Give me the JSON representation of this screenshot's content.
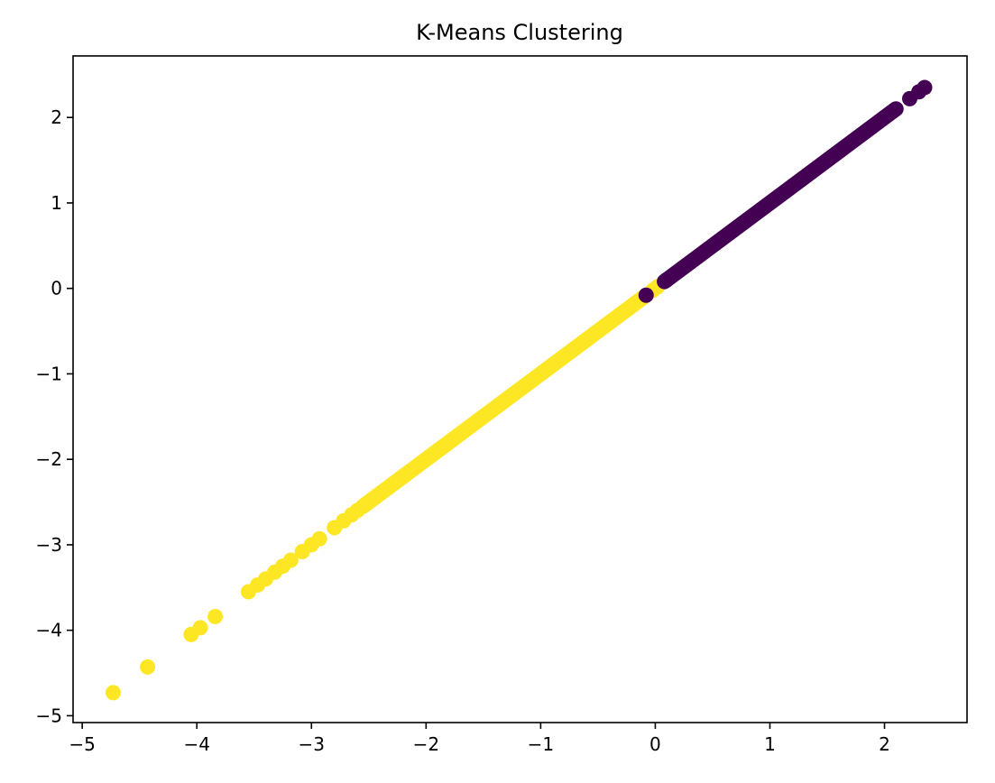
{
  "chart_data": {
    "type": "scatter",
    "title": "K-Means Clustering",
    "xlabel": "",
    "ylabel": "",
    "xlim": [
      -5.08,
      2.72
    ],
    "ylim": [
      -5.08,
      2.72
    ],
    "grid": false,
    "x_ticks": [
      -5,
      -4,
      -3,
      -2,
      -1,
      0,
      1,
      2
    ],
    "y_ticks": [
      -5,
      -4,
      -3,
      -2,
      -1,
      0,
      1,
      2
    ],
    "x_tick_labels": [
      "−5",
      "−4",
      "−3",
      "−2",
      "−1",
      "0",
      "1",
      "2"
    ],
    "y_tick_labels": [
      "−5",
      "−4",
      "−3",
      "−2",
      "−1",
      "0",
      "1",
      "2"
    ],
    "series": [
      {
        "color": "#440154",
        "dense_segment": [
          0.08,
          2.1
        ],
        "points": [
          [
            -0.08,
            -0.08
          ],
          [
            0.1,
            0.1
          ],
          [
            2.22,
            2.22
          ],
          [
            2.3,
            2.3
          ],
          [
            2.35,
            2.35
          ]
        ]
      },
      {
        "color": "#fde725",
        "dense_segment": [
          -2.55,
          -0.1
        ],
        "points": [
          [
            -4.73,
            -4.73
          ],
          [
            -4.43,
            -4.43
          ],
          [
            -4.05,
            -4.05
          ],
          [
            -3.97,
            -3.97
          ],
          [
            -3.84,
            -3.84
          ],
          [
            -3.55,
            -3.55
          ],
          [
            -3.47,
            -3.47
          ],
          [
            -3.4,
            -3.4
          ],
          [
            -3.32,
            -3.32
          ],
          [
            -3.25,
            -3.25
          ],
          [
            -3.18,
            -3.18
          ],
          [
            -3.08,
            -3.08
          ],
          [
            -3.0,
            -3.0
          ],
          [
            -2.93,
            -2.93
          ],
          [
            -2.8,
            -2.8
          ],
          [
            -2.72,
            -2.72
          ],
          [
            -2.65,
            -2.65
          ],
          [
            -2.6,
            -2.6
          ],
          [
            -0.02,
            -0.02
          ],
          [
            0.02,
            0.02
          ]
        ]
      }
    ]
  }
}
